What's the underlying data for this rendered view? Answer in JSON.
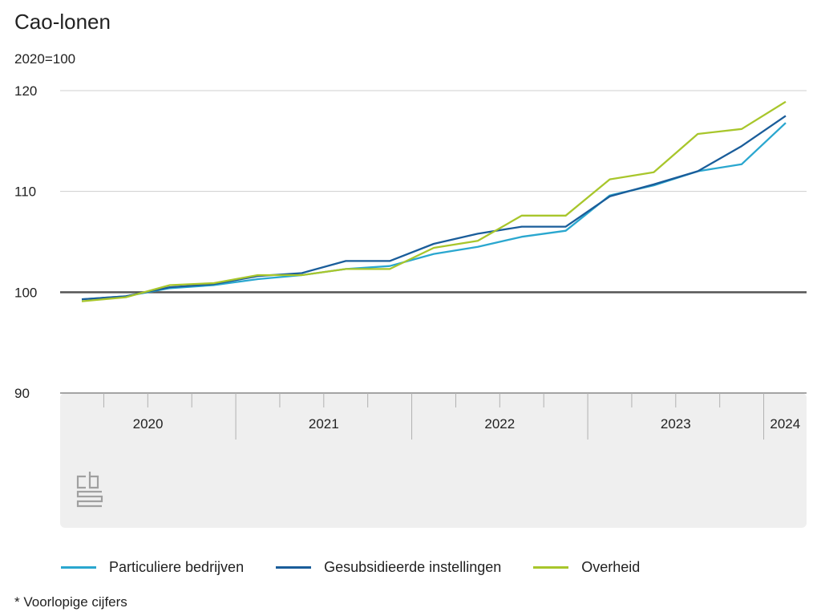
{
  "chart_data": {
    "type": "line",
    "title": "Cao-lonen",
    "unit_label": "2020=100",
    "ylim": [
      90,
      120
    ],
    "yticks": [
      90,
      100,
      110,
      120
    ],
    "reference_line": 100,
    "quarters": [
      "2020-Q1",
      "2020-Q2",
      "2020-Q3",
      "2020-Q4",
      "2021-Q1",
      "2021-Q2",
      "2021-Q3",
      "2021-Q4",
      "2022-Q1",
      "2022-Q2",
      "2022-Q3",
      "2022-Q4",
      "2023-Q1",
      "2023-Q2",
      "2023-Q3",
      "2023-Q4",
      "2024-Q1"
    ],
    "year_labels": [
      "2020",
      "2021",
      "2022",
      "2023",
      "2024"
    ],
    "series": [
      {
        "name": "Particuliere bedrijven",
        "color": "#2aa7cf",
        "values": [
          99.3,
          99.6,
          100.4,
          100.7,
          101.3,
          101.7,
          102.3,
          102.6,
          103.8,
          104.5,
          105.5,
          106.1,
          109.6,
          110.6,
          112.0,
          112.7,
          116.8
        ]
      },
      {
        "name": "Gesubsidieerde instellingen",
        "color": "#1a5d9a",
        "values": [
          99.3,
          99.6,
          100.5,
          100.8,
          101.6,
          101.9,
          103.1,
          103.1,
          104.8,
          105.8,
          106.5,
          106.5,
          109.5,
          110.7,
          112.0,
          114.5,
          117.5
        ]
      },
      {
        "name": "Overheid",
        "color": "#a8c62b",
        "values": [
          99.1,
          99.5,
          100.7,
          100.9,
          101.7,
          101.7,
          102.3,
          102.3,
          104.4,
          105.1,
          107.6,
          107.6,
          111.2,
          111.9,
          115.7,
          116.2,
          118.9
        ]
      }
    ],
    "grid": true,
    "legend_position": "bottom"
  },
  "footnote": "* Voorlopige cijfers",
  "logo": "cbs-logo"
}
